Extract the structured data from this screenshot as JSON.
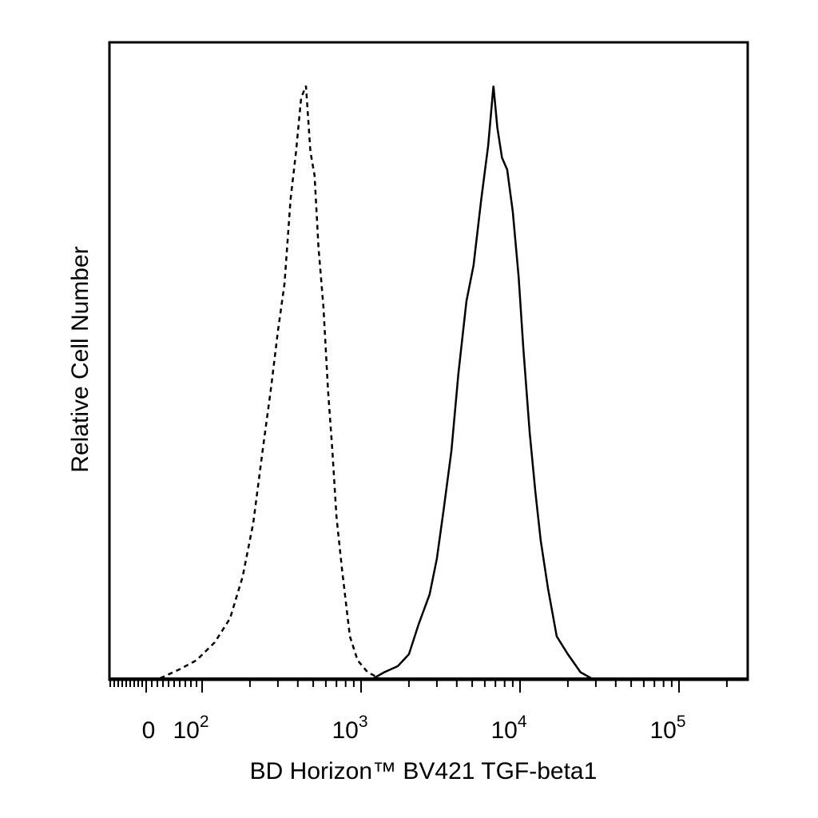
{
  "chart_data": {
    "type": "area",
    "xlabel": "BD Horizon™ BV421 TGF-beta1",
    "ylabel": "Relative Cell Number",
    "x_scale": "biexponential (log decades 10^2–10^5)",
    "x_ticks": [
      {
        "value": 0,
        "base": "0",
        "exp": ""
      },
      {
        "value": 100,
        "base": "10",
        "exp": "2"
      },
      {
        "value": 1000,
        "base": "10",
        "exp": "3"
      },
      {
        "value": 10000,
        "base": "10",
        "exp": "4"
      },
      {
        "value": 100000,
        "base": "10",
        "exp": "5"
      }
    ],
    "y_ticks_shown": false,
    "legend": "none",
    "series": [
      {
        "style": "dashed",
        "x": [
          25,
          60,
          90,
          120,
          150,
          180,
          210,
          240,
          270,
          300,
          330,
          360,
          390,
          420,
          450,
          480,
          510,
          540,
          580,
          620,
          660,
          700,
          760,
          850,
          950,
          1100,
          1300
        ],
        "y": [
          0,
          0.015,
          0.03,
          0.06,
          0.1,
          0.17,
          0.26,
          0.38,
          0.48,
          0.58,
          0.66,
          0.8,
          0.88,
          0.97,
          0.99,
          0.88,
          0.84,
          0.72,
          0.62,
          0.48,
          0.38,
          0.27,
          0.18,
          0.07,
          0.03,
          0.01,
          0
        ]
      },
      {
        "style": "solid",
        "x": [
          1200,
          1400,
          1700,
          2000,
          2300,
          2700,
          3000,
          3300,
          3700,
          4100,
          4600,
          5100,
          5700,
          6300,
          6800,
          7200,
          7700,
          8300,
          9000,
          9800,
          10500,
          11500,
          12500,
          13500,
          15000,
          17000,
          20000,
          24000,
          28000
        ],
        "y": [
          0,
          0.01,
          0.02,
          0.04,
          0.09,
          0.14,
          0.2,
          0.28,
          0.38,
          0.51,
          0.63,
          0.69,
          0.8,
          0.89,
          0.99,
          0.92,
          0.87,
          0.85,
          0.78,
          0.67,
          0.55,
          0.41,
          0.31,
          0.23,
          0.15,
          0.07,
          0.04,
          0.01,
          0
        ]
      }
    ]
  }
}
